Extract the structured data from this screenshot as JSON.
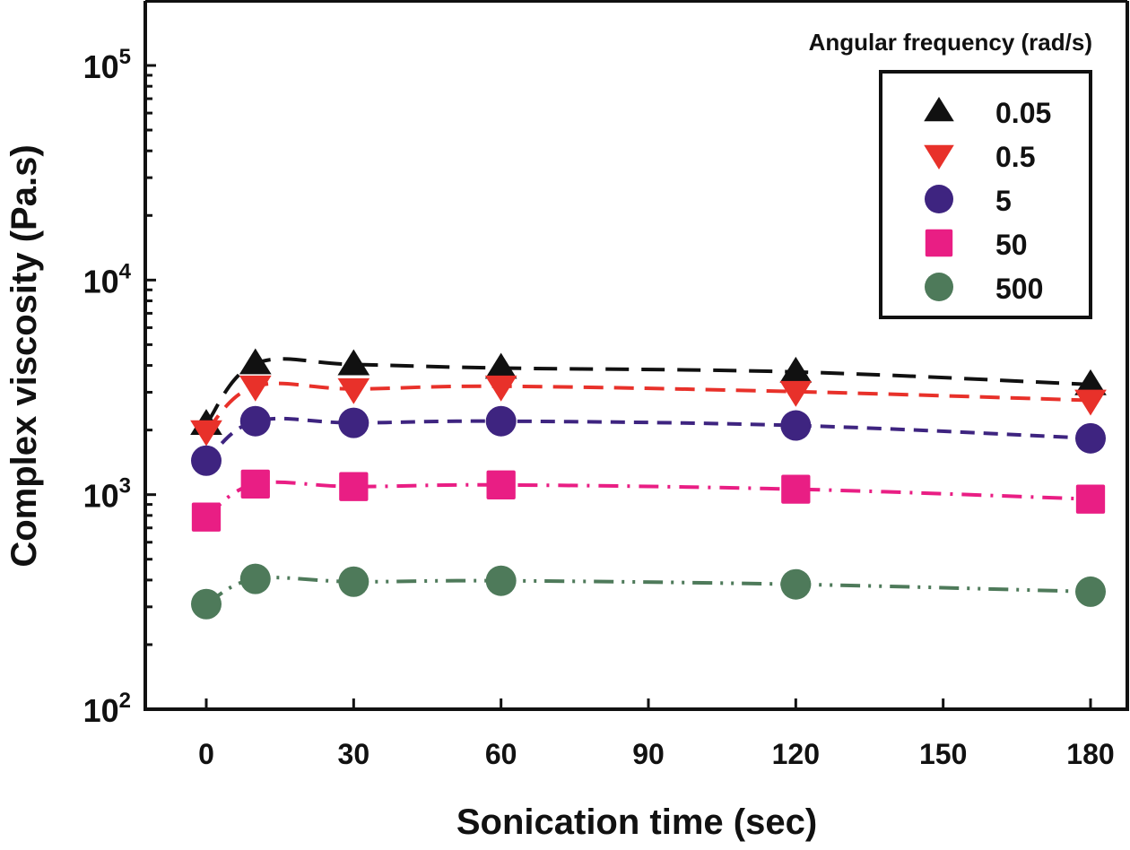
{
  "chart_data": {
    "type": "line",
    "title": "",
    "xlabel": "Sonication time (sec)",
    "ylabel": "Complex viscosity (Pa.s)",
    "xlim": [
      -13,
      194
    ],
    "ylim": [
      100,
      100000
    ],
    "yscale": "log",
    "x_ticks": [
      0,
      30,
      60,
      90,
      120,
      150,
      180
    ],
    "x_tick_labels": [
      "0",
      "30",
      "60",
      "90",
      "120",
      "150",
      "180"
    ],
    "y_ticks": [
      100,
      1000,
      10000,
      100000
    ],
    "y_tick_labels": [
      {
        "base": "10",
        "exp": "2"
      },
      {
        "base": "10",
        "exp": "3"
      },
      {
        "base": "10",
        "exp": "4"
      },
      {
        "base": "10",
        "exp": "5"
      }
    ],
    "grid": false,
    "legend": {
      "title": "Angular frequency (rad/s)",
      "placement": "top-right"
    },
    "x": [
      0,
      10,
      30,
      60,
      120,
      180
    ],
    "series": [
      {
        "name": "0.05",
        "marker": "triangle-up",
        "color": "#111111",
        "dash": "long-dash",
        "values": [
          2130,
          4080,
          4040,
          3890,
          3730,
          3260
        ]
      },
      {
        "name": "0.5",
        "marker": "triangle-down",
        "color": "#E8312A",
        "dash": "dash",
        "values": [
          1980,
          3200,
          3110,
          3200,
          3020,
          2750
        ]
      },
      {
        "name": "5",
        "marker": "circle",
        "color": "#3E2480",
        "dash": "short-dash",
        "values": [
          1440,
          2200,
          2160,
          2200,
          2100,
          1830
        ]
      },
      {
        "name": "50",
        "marker": "square",
        "color": "#E91E84",
        "dash": "dash-dot",
        "values": [
          786,
          1120,
          1090,
          1110,
          1060,
          953
        ]
      },
      {
        "name": "500",
        "marker": "circle",
        "color": "#4E7A5A",
        "dash": "dash-dot-dot",
        "values": [
          309,
          405,
          393,
          397,
          382,
          353
        ]
      }
    ]
  }
}
